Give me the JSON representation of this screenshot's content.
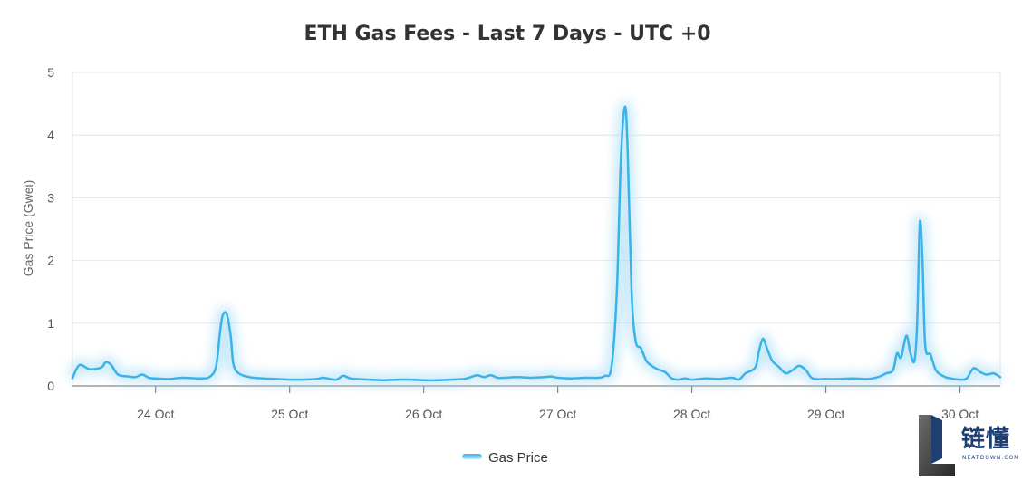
{
  "chart_data": {
    "type": "line",
    "title": "ETH Gas Fees - Last 7 Days - UTC +0",
    "xlabel": "",
    "ylabel": "Gas Price (Gwei)",
    "ylim": [
      0,
      5
    ],
    "yticks": [
      "0",
      "1",
      "2",
      "3",
      "4",
      "5"
    ],
    "xticks": [
      "24 Oct",
      "25 Oct",
      "26 Oct",
      "27 Oct",
      "28 Oct",
      "29 Oct",
      "30 Oct"
    ],
    "x_domain": [
      -0.62,
      6.3
    ],
    "grid": true,
    "legend_position": "bottom",
    "line_color": "#3bb2e8",
    "series": [
      {
        "name": "Gas Price",
        "points": [
          [
            -0.62,
            0.12
          ],
          [
            -0.57,
            0.33
          ],
          [
            -0.5,
            0.27
          ],
          [
            -0.45,
            0.27
          ],
          [
            -0.4,
            0.3
          ],
          [
            -0.37,
            0.38
          ],
          [
            -0.33,
            0.33
          ],
          [
            -0.28,
            0.18
          ],
          [
            -0.2,
            0.15
          ],
          [
            -0.15,
            0.14
          ],
          [
            -0.1,
            0.18
          ],
          [
            -0.05,
            0.13
          ],
          [
            0.0,
            0.12
          ],
          [
            0.1,
            0.11
          ],
          [
            0.2,
            0.13
          ],
          [
            0.3,
            0.12
          ],
          [
            0.35,
            0.12
          ],
          [
            0.4,
            0.14
          ],
          [
            0.45,
            0.3
          ],
          [
            0.48,
            0.85
          ],
          [
            0.5,
            1.12
          ],
          [
            0.53,
            1.15
          ],
          [
            0.56,
            0.8
          ],
          [
            0.58,
            0.35
          ],
          [
            0.62,
            0.2
          ],
          [
            0.7,
            0.14
          ],
          [
            0.8,
            0.12
          ],
          [
            0.9,
            0.11
          ],
          [
            1.0,
            0.1
          ],
          [
            1.1,
            0.1
          ],
          [
            1.2,
            0.11
          ],
          [
            1.25,
            0.13
          ],
          [
            1.3,
            0.11
          ],
          [
            1.35,
            0.1
          ],
          [
            1.4,
            0.16
          ],
          [
            1.45,
            0.12
          ],
          [
            1.5,
            0.11
          ],
          [
            1.6,
            0.1
          ],
          [
            1.7,
            0.09
          ],
          [
            1.8,
            0.1
          ],
          [
            1.9,
            0.1
          ],
          [
            2.0,
            0.09
          ],
          [
            2.1,
            0.09
          ],
          [
            2.2,
            0.1
          ],
          [
            2.3,
            0.11
          ],
          [
            2.35,
            0.14
          ],
          [
            2.4,
            0.17
          ],
          [
            2.45,
            0.14
          ],
          [
            2.5,
            0.17
          ],
          [
            2.55,
            0.13
          ],
          [
            2.6,
            0.13
          ],
          [
            2.7,
            0.14
          ],
          [
            2.8,
            0.13
          ],
          [
            2.9,
            0.14
          ],
          [
            2.95,
            0.15
          ],
          [
            3.0,
            0.13
          ],
          [
            3.1,
            0.12
          ],
          [
            3.2,
            0.13
          ],
          [
            3.3,
            0.13
          ],
          [
            3.35,
            0.16
          ],
          [
            3.4,
            0.3
          ],
          [
            3.44,
            1.5
          ],
          [
            3.47,
            3.6
          ],
          [
            3.5,
            4.45
          ],
          [
            3.52,
            3.8
          ],
          [
            3.55,
            1.5
          ],
          [
            3.58,
            0.72
          ],
          [
            3.62,
            0.6
          ],
          [
            3.66,
            0.4
          ],
          [
            3.7,
            0.32
          ],
          [
            3.75,
            0.26
          ],
          [
            3.8,
            0.22
          ],
          [
            3.85,
            0.12
          ],
          [
            3.9,
            0.1
          ],
          [
            3.95,
            0.12
          ],
          [
            4.0,
            0.1
          ],
          [
            4.1,
            0.12
          ],
          [
            4.2,
            0.11
          ],
          [
            4.3,
            0.13
          ],
          [
            4.35,
            0.1
          ],
          [
            4.4,
            0.2
          ],
          [
            4.45,
            0.25
          ],
          [
            4.48,
            0.33
          ],
          [
            4.5,
            0.55
          ],
          [
            4.53,
            0.75
          ],
          [
            4.56,
            0.6
          ],
          [
            4.6,
            0.4
          ],
          [
            4.65,
            0.3
          ],
          [
            4.7,
            0.2
          ],
          [
            4.75,
            0.25
          ],
          [
            4.8,
            0.32
          ],
          [
            4.85,
            0.25
          ],
          [
            4.9,
            0.12
          ],
          [
            5.0,
            0.11
          ],
          [
            5.1,
            0.11
          ],
          [
            5.2,
            0.12
          ],
          [
            5.3,
            0.11
          ],
          [
            5.35,
            0.12
          ],
          [
            5.4,
            0.15
          ],
          [
            5.45,
            0.2
          ],
          [
            5.5,
            0.25
          ],
          [
            5.53,
            0.52
          ],
          [
            5.56,
            0.45
          ],
          [
            5.6,
            0.8
          ],
          [
            5.63,
            0.52
          ],
          [
            5.66,
            0.4
          ],
          [
            5.68,
            1.0
          ],
          [
            5.7,
            2.6
          ],
          [
            5.72,
            2.0
          ],
          [
            5.74,
            0.65
          ],
          [
            5.78,
            0.5
          ],
          [
            5.82,
            0.25
          ],
          [
            5.88,
            0.15
          ],
          [
            5.93,
            0.12
          ],
          [
            6.0,
            0.1
          ],
          [
            6.05,
            0.12
          ],
          [
            6.1,
            0.28
          ],
          [
            6.15,
            0.22
          ],
          [
            6.2,
            0.18
          ],
          [
            6.25,
            0.2
          ],
          [
            6.3,
            0.14
          ]
        ]
      }
    ]
  },
  "watermark": {
    "chinese_text": "链懂",
    "sub_text": "NEATDOWN.COM"
  }
}
